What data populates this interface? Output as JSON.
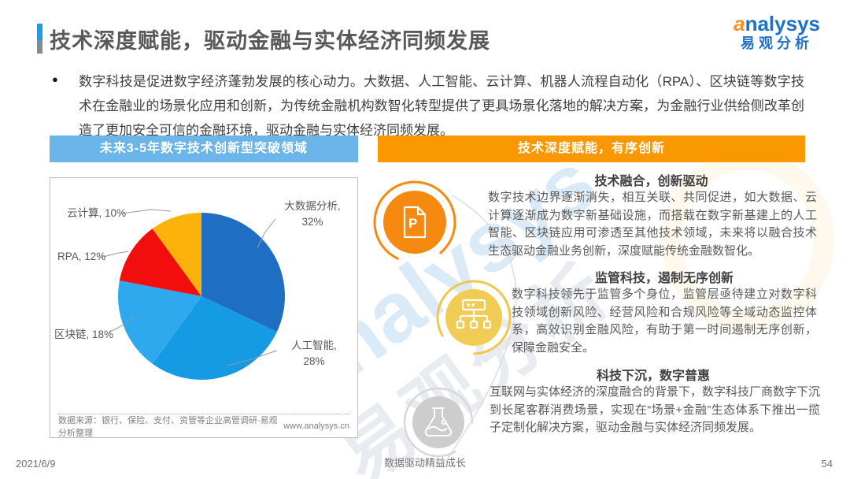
{
  "page": {
    "title": "技术深度赋能，驱动金融与实体经济同频发展",
    "date": "2021/6/9",
    "footer_center": "数据驱动精益成长",
    "page_number": "54"
  },
  "logo": {
    "brand": "analysys",
    "brand_cn": "易观分析"
  },
  "intro": {
    "bullet": "●",
    "text": "数字科技是促进数字经济蓬勃发展的核心动力。大数据、人工智能、云计算、机器人流程自动化（RPA）、区块链等数字技术在金融业的场景化应用和创新，为传统金融机构数智化转型提供了更具场景化落地的解决方案，为金融行业供给侧改革创造了更加安全可信的金融环境，驱动金融与实体经济同频发展。"
  },
  "left_panel": {
    "header": "未来3-5年数字技术创新型突破领域",
    "source_note": "数据来源：银行、保险、支付、资管等企业高管调研·易观分析整理",
    "website": "www.analysys.cn"
  },
  "right_panel": {
    "header": "技术深度赋能，有序创新",
    "sections": [
      {
        "icon": "document-p-icon",
        "heading": "技术融合，创新驱动",
        "body": "数字技术边界逐渐消失，相互关联、共同促进，如大数据、云计算逐渐成为数字新基础设施，而搭载在数字新基建上的人工智能、区块链应用可渗透至其他技术领域，未来将以融合技术生态驱动金融业务创新，深度赋能传统金融数智化。"
      },
      {
        "icon": "network-icon",
        "heading": "监管科技，遏制无序创新",
        "body": "数字科技领先于监管多个身位，监管层亟待建立对数字科技领域创新风险、经营风险和合规风险等全域动态监控体系，高效识别金融风险，有助于第一时间遏制无序创新，保障金融安全。"
      },
      {
        "icon": "flask-icon",
        "heading": "科技下沉，数字普惠",
        "body": "互联网与实体经济的深度融合的背景下，数字科技厂商数字下沉到长尾客群消费场景，实现在“场景+金融”生态体系下推出一揽子定制化解决方案，驱动金融与实体经济同频发展。"
      }
    ]
  },
  "chart_data": {
    "type": "pie",
    "title": "未来3-5年数字技术创新型突破领域",
    "categories": [
      "大数据分析",
      "人工智能",
      "区块链",
      "RPA",
      "云计算"
    ],
    "values": [
      32,
      28,
      18,
      12,
      10
    ],
    "unit": "%",
    "colors": [
      "#1e6fc4",
      "#149be4",
      "#2ea9ee",
      "#f30e0e",
      "#fbb30b"
    ],
    "start_angle_deg": 0,
    "direction": "clockwise",
    "legend": "none",
    "labels": [
      {
        "text": "大数据分析,",
        "pct": "32%"
      },
      {
        "text": "人工智能,",
        "pct": "28%"
      },
      {
        "text": "区块链, 18%"
      },
      {
        "text": "RPA, 12%"
      },
      {
        "text": "云计算, 10%"
      }
    ]
  },
  "watermark": {
    "latin": "analysys",
    "cn": "易观分析"
  },
  "colors": {
    "left_bar": "#6cb5e8",
    "right_bar": "#f99800",
    "brand_blue": "#1d71c8",
    "brand_orange": "#f7941e"
  }
}
